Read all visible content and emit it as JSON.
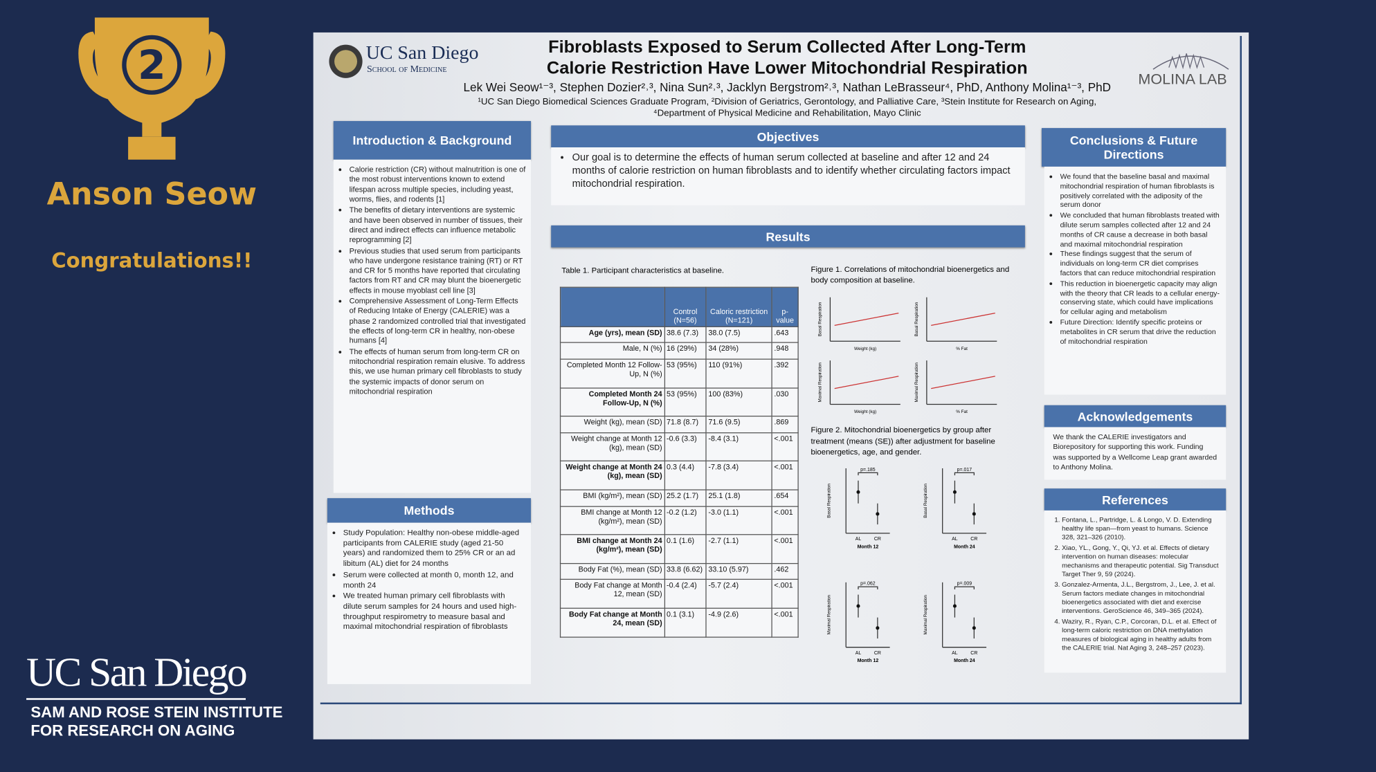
{
  "award": {
    "place": "2",
    "name": "Anson Seow",
    "message": "Congratulations!!"
  },
  "institute": {
    "university": "UC San Diego",
    "line1": "SAM AND ROSE STEIN INSTITUTE",
    "line2": "FOR RESEARCH ON AGING"
  },
  "poster": {
    "logo": {
      "university": "UC San Diego",
      "school": "School of Medicine"
    },
    "lab": "MOLINA LAB",
    "title_line1": "Fibroblasts Exposed to Serum Collected After Long-Term",
    "title_line2": "Calorie Restriction Have Lower Mitochondrial Respiration",
    "authors": "Lek Wei Seow¹⁻³, Stephen Dozier²˒³, Nina Sun²˒³, Jacklyn Bergstrom²˒³, Nathan LeBrasseur⁴, PhD, Anthony Molina¹⁻³, PhD",
    "affiliations_line1": "¹UC San Diego Biomedical Sciences Graduate Program, ²Division of Geriatrics, Gerontology, and Palliative Care, ³Stein Institute for Research on Aging,",
    "affiliations_line2": "⁴Department of Physical Medicine and Rehabilitation, Mayo Clinic",
    "intro": {
      "heading": "Introduction & Background",
      "bullets": [
        "Calorie restriction (CR) without malnutrition is one of the most robust interventions known to extend lifespan across multiple species, including yeast, worms, flies, and rodents [1]",
        "The benefits of dietary interventions are systemic and have been observed in number of tissues, their direct and indirect effects can influence metabolic reprogramming [2]",
        "Previous studies that used serum from participants who have undergone resistance training (RT) or RT and CR for 5 months have reported that circulating factors from RT and CR may blunt the bioenergetic effects in mouse myoblast cell line [3]",
        "Comprehensive Assessment of Long-Term Effects of Reducing Intake of Energy (CALERIE) was a phase 2 randomized controlled trial that investigated the effects of long-term CR in healthy, non-obese humans [4]",
        "The effects of human serum from long-term CR on mitochondrial respiration remain elusive. To address this, we use human primary cell fibroblasts to study the systemic impacts of donor serum on mitochondrial respiration"
      ]
    },
    "methods": {
      "heading": "Methods",
      "bullets": [
        "Study Population: Healthy non-obese middle-aged participants from CALERIE study (aged 21-50 years) and randomized them to 25% CR or an ad libitum (AL) diet for 24 months",
        "Serum were collected at month 0, month 12, and month 24",
        "We treated human primary cell fibroblasts with dilute serum samples for 24 hours and used high-throughput respirometry to measure basal and maximal mitochondrial respiration of fibroblasts"
      ]
    },
    "objectives": {
      "heading": "Objectives",
      "text": "Our goal is to determine the effects of human serum collected at baseline and after 12 and 24 months of calorie restriction on human fibroblasts and to identify whether circulating factors impact mitochondrial respiration."
    },
    "results": {
      "heading": "Results"
    },
    "table": {
      "caption": "Table 1. Participant characteristics at baseline.",
      "header": [
        "Control (N=56)",
        "Caloric restriction (N=121)",
        "p-value"
      ],
      "rows": [
        [
          "Age (yrs), mean (SD)",
          "38.6 (7.3)",
          "38.0 (7.5)",
          ".643"
        ],
        [
          "Male, N (%)",
          "16 (29%)",
          "34 (28%)",
          ".948"
        ],
        [
          "Completed Month 12 Follow-Up, N (%)",
          "53 (95%)",
          "110 (91%)",
          ".392"
        ],
        [
          "Completed Month 24 Follow-Up, N (%)",
          "53 (95%)",
          "100 (83%)",
          ".030"
        ],
        [
          "Weight (kg), mean (SD)",
          "71.8 (8.7)",
          "71.6 (9.5)",
          ".869"
        ],
        [
          "Weight change at Month 12 (kg), mean (SD)",
          "-0.6 (3.3)",
          "-8.4 (3.1)",
          "<.001"
        ],
        [
          "Weight change at Month 24 (kg), mean (SD)",
          "0.3 (4.4)",
          "-7.8 (3.4)",
          "<.001"
        ],
        [
          "BMI (kg/m²), mean (SD)",
          "25.2 (1.7)",
          "25.1 (1.8)",
          ".654"
        ],
        [
          "BMI change at Month 12 (kg/m²), mean (SD)",
          "-0.2 (1.2)",
          "-3.0 (1.1)",
          "<.001"
        ],
        [
          "BMI change at Month 24 (kg/m²), mean (SD)",
          "0.1 (1.6)",
          "-2.7 (1.1)",
          "<.001"
        ],
        [
          "Body Fat (%), mean (SD)",
          "33.8 (6.62)",
          "33.10 (5.97)",
          ".462"
        ],
        [
          "Body Fat change at Month 12, mean (SD)",
          "-0.4 (2.4)",
          "-5.7 (2.4)",
          "<.001"
        ],
        [
          "Body Fat change at Month 24, mean (SD)",
          "0.1 (3.1)",
          "-4.9 (2.6)",
          "<.001"
        ]
      ]
    },
    "figure1": {
      "caption": "Figure 1. Correlations of mitochondrial bioenergetics and body composition at baseline.",
      "x_labels": [
        "Weight (kg)",
        "% Fat",
        "Weight (kg)",
        "% Fat"
      ],
      "y_labels": [
        "Basal Respiration",
        "Basal Respiration",
        "Maximal Respiration",
        "Maximal Respiration"
      ]
    },
    "figure2": {
      "caption": "Figure 2. Mitochondrial bioenergetics by group after treatment (means (SE)) after adjustment for baseline bioenergetics, age, and gender.",
      "p_values": [
        "p=.185",
        "p=.017",
        "p=.062",
        "p=.009"
      ],
      "groups": [
        "AL",
        "CR"
      ],
      "months": [
        "Month 12",
        "Month 24",
        "Month 12",
        "Month 24"
      ],
      "y_labels": [
        "Basal Respiration",
        "Basal Respiration",
        "Maximal Respiration",
        "Maximal Respiration"
      ]
    },
    "conclusions": {
      "heading": "Conclusions & Future Directions",
      "bullets": [
        "We found that the baseline basal and maximal mitochondrial respiration of human fibroblasts is positively correlated with the adiposity of the serum donor",
        "We concluded that human fibroblasts treated with dilute serum samples collected after 12 and 24 months of CR cause a decrease in both basal and maximal mitochondrial respiration",
        "These findings suggest that the serum of individuals on long-term CR diet comprises factors that can reduce mitochondrial respiration",
        "This reduction in bioenergetic capacity may align with the theory that CR leads to a cellular energy-conserving state, which could have implications for cellular aging and metabolism",
        "Future Direction: Identify specific proteins or metabolites in CR serum that drive the reduction of mitochondrial respiration"
      ]
    },
    "acknowledgements": {
      "heading": "Acknowledgements",
      "text": "We thank the CALERIE investigators and Biorepository for supporting this work. Funding was supported by a Wellcome Leap grant awarded to Anthony Molina."
    },
    "references": {
      "heading": "References",
      "items": [
        "Fontana, L., Partridge, L. & Longo, V. D. Extending healthy life span—from yeast to humans. Science 328, 321–326 (2010).",
        "Xiao, YL., Gong, Y., Qi, YJ. et al. Effects of dietary intervention on human diseases: molecular mechanisms and therapeutic potential. Sig Transduct Target Ther 9, 59 (2024).",
        "Gonzalez-Armenta, J.L., Bergstrom, J., Lee, J. et al. Serum factors mediate changes in mitochondrial bioenergetics associated with diet and exercise interventions. GeroScience 46, 349–365 (2024).",
        "Waziry, R., Ryan, C.P., Corcoran, D.L. et al. Effect of long-term caloric restriction on DNA methylation measures of biological aging in healthy adults from the CALERIE trial. Nat Aging 3, 248–257 (2023)."
      ]
    }
  }
}
